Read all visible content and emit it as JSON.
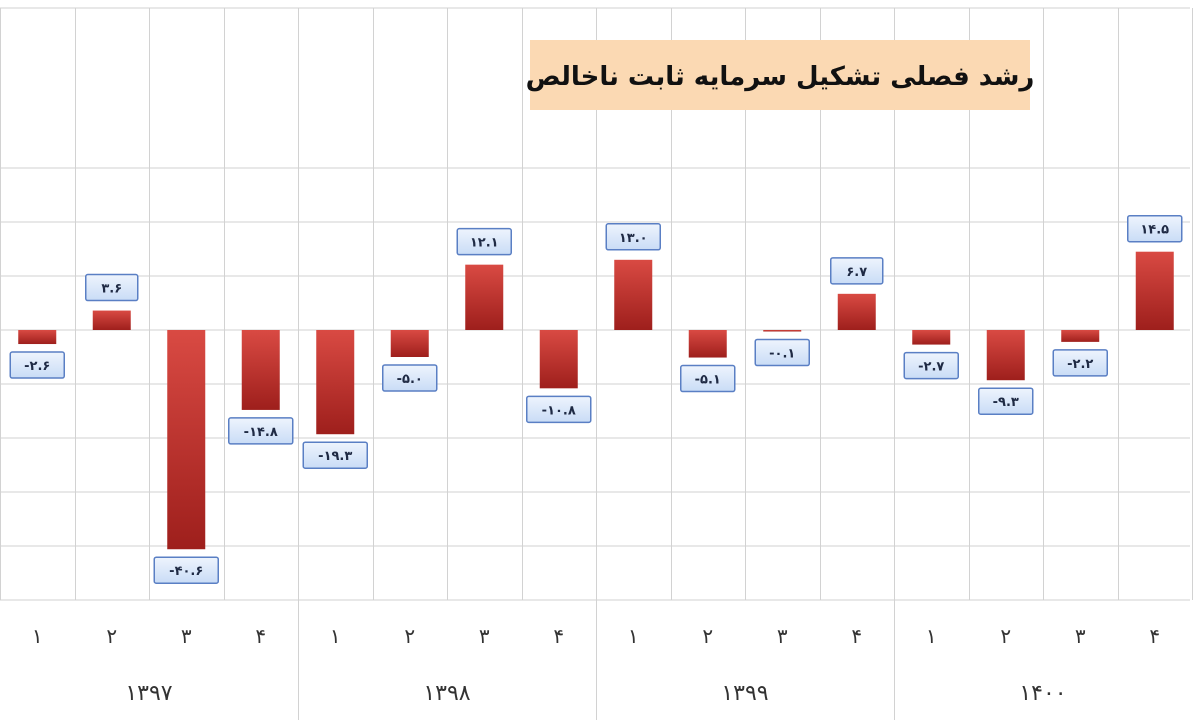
{
  "chart_data": {
    "type": "bar",
    "title": "رشد فصلی تشکیل سرمایه ثابت ناخالص",
    "xlabel": "",
    "ylabel": "",
    "ylim": [
      -50,
      35
    ],
    "grid": true,
    "colors": {
      "bar": "#c0302a",
      "label_box": "#dce9fb",
      "label_border": "#5a7fc4",
      "title_box": "#fbd9b3"
    },
    "groups": [
      {
        "year": "۱۳۹۷",
        "quarters": [
          "۱",
          "۲",
          "۳",
          "۴"
        ],
        "values": [
          -2.6,
          3.6,
          -40.6,
          -14.8
        ],
        "labels": [
          "-۲.۶",
          "۳.۶",
          "-۴۰.۶",
          "-۱۴.۸"
        ]
      },
      {
        "year": "۱۳۹۸",
        "quarters": [
          "۱",
          "۲",
          "۳",
          "۴"
        ],
        "values": [
          -19.3,
          -5.0,
          12.1,
          -10.8
        ],
        "labels": [
          "-۱۹.۳",
          "-۵.۰",
          "۱۲.۱",
          "-۱۰.۸"
        ]
      },
      {
        "year": "۱۳۹۹",
        "quarters": [
          "۱",
          "۲",
          "۳",
          "۴"
        ],
        "values": [
          13.0,
          -5.1,
          -0.1,
          6.7
        ],
        "labels": [
          "۱۳.۰",
          "-۵.۱",
          "-۰.۱",
          "۶.۷"
        ]
      },
      {
        "year": "۱۴۰۰",
        "quarters": [
          "۱",
          "۲",
          "۳",
          "۴"
        ],
        "values": [
          -2.7,
          -9.3,
          -2.2,
          14.5
        ],
        "labels": [
          "-۲.۷",
          "-۹.۳",
          "-۲.۲",
          "۱۴.۵"
        ]
      }
    ]
  }
}
